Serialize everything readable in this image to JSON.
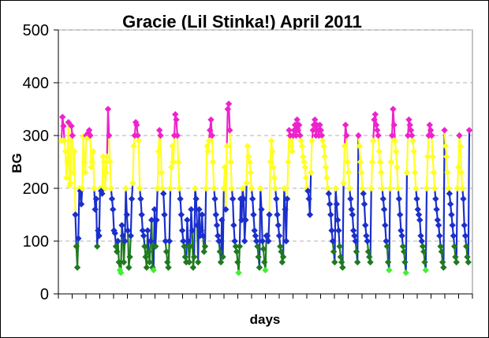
{
  "chart_data": {
    "type": "line",
    "title": "Gracie (Lil Stinka!) April 2011",
    "xlabel": "days",
    "ylabel": "BG",
    "ylim": [
      0,
      500
    ],
    "yticks": [
      "0",
      "100",
      "200",
      "300",
      "400",
      "500"
    ],
    "x_tick_count": 30,
    "grid": {
      "horizontal": true,
      "style": "dashed"
    },
    "legend": "none",
    "readings": [
      290,
      335,
      318,
      290,
      270,
      220,
      250,
      325,
      205,
      210,
      318,
      300,
      230,
      270,
      150,
      90,
      50,
      105,
      200,
      195,
      170,
      200,
      298,
      250,
      230,
      300,
      295,
      305,
      310,
      300,
      240,
      250,
      270,
      200,
      160,
      180,
      90,
      120,
      110,
      200,
      195,
      190,
      260,
      250,
      200,
      230,
      260,
      350,
      300,
      250,
      200,
      180,
      160,
      120,
      115,
      90,
      80,
      100,
      60,
      45,
      40,
      130,
      110,
      60,
      100,
      200,
      150,
      120,
      50,
      70,
      110,
      180,
      210,
      280,
      300,
      325,
      320,
      300,
      290,
      200,
      180,
      150,
      120,
      110,
      90,
      70,
      50,
      120,
      80,
      60,
      100,
      140,
      50,
      45,
      160,
      90,
      140,
      200,
      270,
      310,
      300,
      230,
      200,
      190,
      150,
      100,
      80,
      60,
      50,
      100,
      200,
      240,
      280,
      250,
      300,
      340,
      330,
      300,
      250,
      200,
      180,
      150,
      120,
      100,
      90,
      70,
      60,
      140,
      100,
      60,
      90,
      160,
      120,
      50,
      70,
      200,
      180,
      130,
      60,
      160,
      110,
      120,
      150,
      110,
      80,
      90,
      200,
      280,
      270,
      290,
      310,
      330,
      300,
      250,
      200,
      180,
      150,
      130,
      110,
      100,
      80,
      60,
      140,
      70,
      200,
      240,
      160,
      280,
      350,
      360,
      310,
      250,
      200,
      180,
      130,
      100,
      90,
      80,
      60,
      40,
      90,
      180,
      140,
      200,
      180,
      100,
      140,
      210,
      280,
      260,
      250,
      230,
      200,
      180,
      150,
      120,
      110,
      100,
      90,
      70,
      50,
      200,
      160,
      100,
      85,
      60,
      45,
      110,
      110,
      100,
      150,
      250,
      290,
      270,
      240,
      220,
      200,
      180,
      150,
      130,
      110,
      90,
      80,
      60,
      70,
      200,
      160,
      100,
      180,
      250,
      310,
      300,
      280,
      270,
      300,
      310,
      320,
      300,
      330,
      310,
      320,
      300,
      290,
      280,
      260,
      250,
      240,
      220,
      200,
      195,
      180,
      150,
      230,
      290,
      310,
      320,
      330,
      300,
      320,
      310,
      300,
      320,
      310,
      300,
      290,
      280,
      260,
      240,
      220,
      200,
      190,
      170,
      150,
      120,
      100,
      80,
      60,
      200,
      170,
      140,
      120,
      90,
      70,
      60,
      50,
      210,
      280,
      320,
      300,
      250,
      230,
      200,
      180,
      160,
      150,
      120,
      110,
      100,
      80,
      60,
      300,
      280,
      250,
      230,
      200,
      190,
      170,
      130,
      110,
      100,
      80,
      70,
      60,
      200,
      250,
      290,
      330,
      340,
      320,
      310,
      300,
      270,
      250,
      230,
      200,
      180,
      160,
      130,
      100,
      90,
      60,
      45,
      200,
      250,
      300,
      350,
      320,
      290,
      270,
      240,
      200,
      180,
      150,
      120,
      110,
      90,
      80,
      60,
      40,
      230,
      300,
      330,
      320,
      310,
      300,
      290,
      270,
      230,
      200,
      180,
      160,
      150,
      140,
      110,
      100,
      90,
      80,
      60,
      45,
      200,
      260,
      300,
      320,
      310,
      300,
      260,
      230,
      200,
      180,
      160,
      140,
      130,
      110,
      90,
      80,
      60,
      50,
      310,
      280,
      260,
      230,
      200,
      190,
      170,
      150,
      130,
      110,
      90,
      70,
      60,
      200,
      240,
      300,
      280,
      230,
      200,
      180,
      130,
      110,
      90,
      70,
      60,
      310
    ],
    "bands": [
      {
        "min": 0,
        "max": 50,
        "color": "#44ee33"
      },
      {
        "min": 50,
        "max": 100,
        "color": "#1f7a1f"
      },
      {
        "min": 100,
        "max": 200,
        "color": "#1a2fcc"
      },
      {
        "min": 200,
        "max": 300,
        "color": "#ffff22"
      },
      {
        "min": 300,
        "max": 500,
        "color": "#ee22cc"
      }
    ]
  },
  "colors": {
    "plot_background": "#ffffff",
    "grid": "#b0b0b0",
    "axis": "#888888"
  }
}
